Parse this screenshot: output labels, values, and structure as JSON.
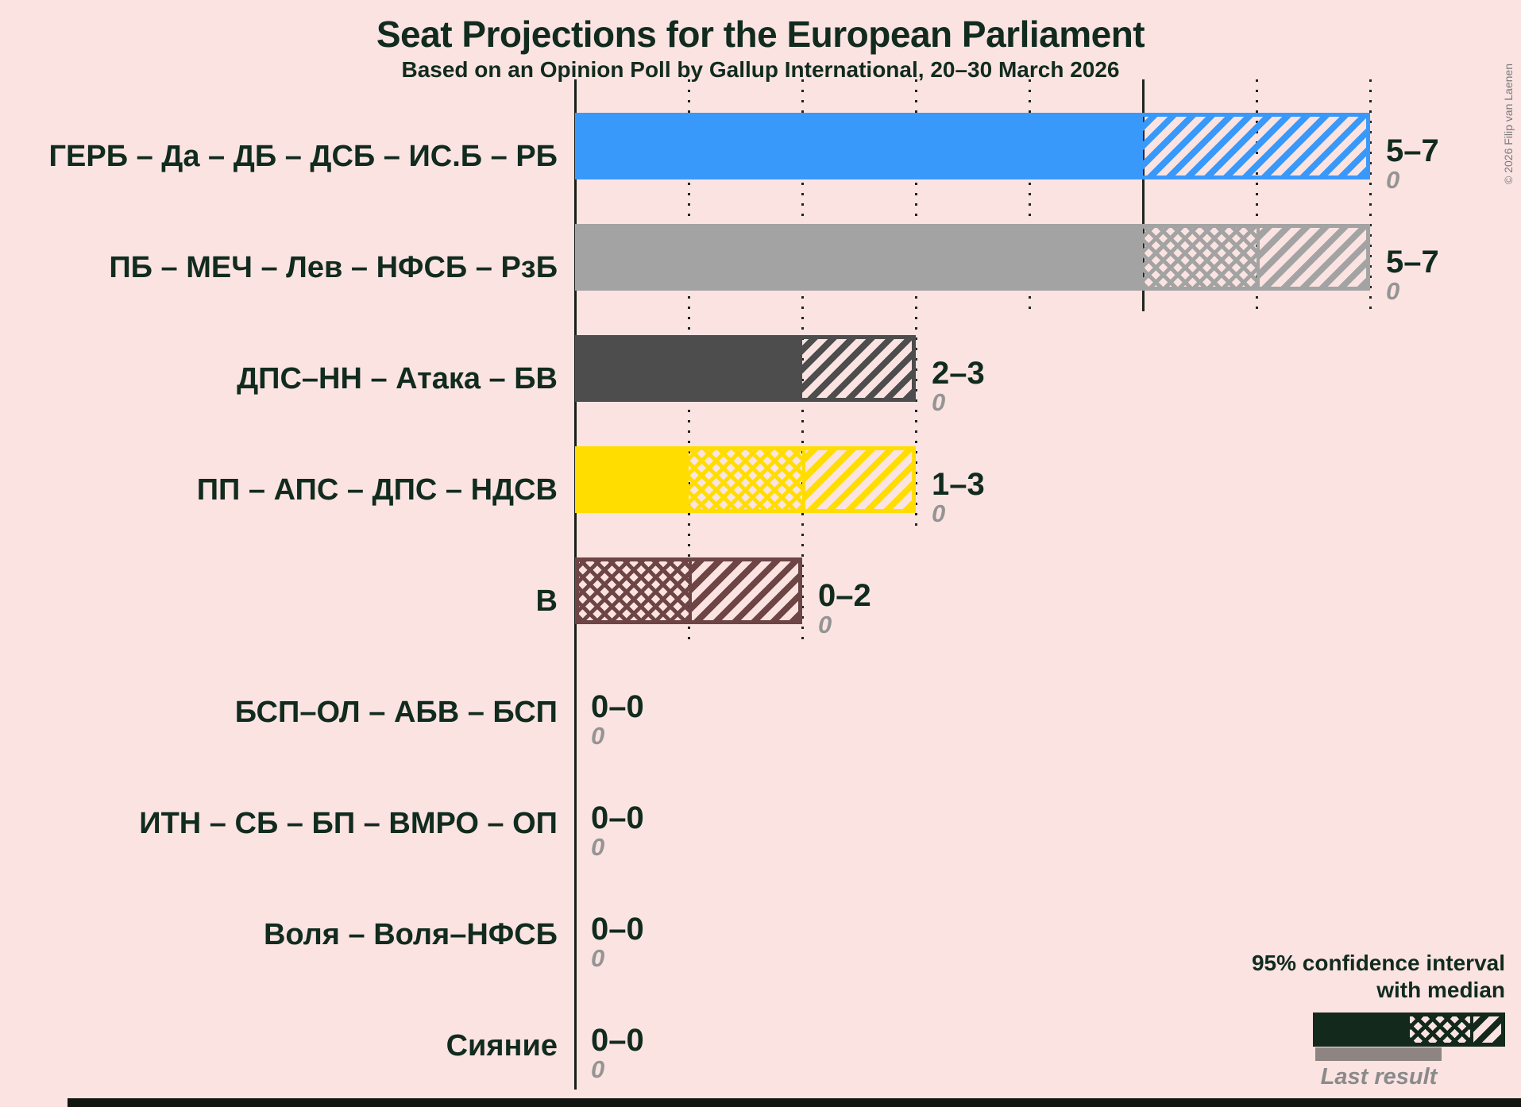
{
  "title": "Seat Projections for the European Parliament",
  "subtitle": "Based on an Opinion Poll by Gallup International, 20–30 March 2026",
  "copyright": "© 2026 Filip van Laenen",
  "legend": {
    "ci_label_line1": "95% confidence interval",
    "ci_label_line2": "with median",
    "last_result_label": "Last result"
  },
  "colors": {
    "background": "#FBE3E2",
    "text": "#112B1E",
    "grid": "#1C261F",
    "last_result_text": "#949494",
    "legend_sample": "#13291C",
    "legend_last_result_bar": "#8E8582",
    "bottom_bar": "#111611"
  },
  "chart_data": {
    "type": "bar",
    "orientation": "horizontal",
    "unit": "seats",
    "x_axis": {
      "min": 0,
      "max": 7,
      "gridline_interval": 1,
      "solid_gridline_at": 5,
      "gridline_style": "dotted"
    },
    "bar_semantics": "solid = 0 to CI low, crosshatch = CI low to median, diagonal hatch = median to CI high; gray underbar = last result",
    "parties": [
      {
        "label": "ГЕРБ – Да – ДБ – ДСБ – ИС.Б – РБ",
        "ci_low": 5,
        "median": 5,
        "ci_high": 7,
        "last_result": 0,
        "value_label": "5–7",
        "last_result_label": "0",
        "color": "#3999FB"
      },
      {
        "label": "ПБ – МЕЧ – Лев – НФСБ – РзБ",
        "ci_low": 5,
        "median": 6,
        "ci_high": 7,
        "last_result": 0,
        "value_label": "5–7",
        "last_result_label": "0",
        "color": "#A3A3A3"
      },
      {
        "label": "ДПС–НН – Атака – БВ",
        "ci_low": 2,
        "median": 2,
        "ci_high": 3,
        "last_result": 0,
        "value_label": "2–3",
        "last_result_label": "0",
        "color": "#4D4D4D"
      },
      {
        "label": "ПП – АПС – ДПС – НДСВ",
        "ci_low": 1,
        "median": 2,
        "ci_high": 3,
        "last_result": 0,
        "value_label": "1–3",
        "last_result_label": "0",
        "color": "#FFDD00"
      },
      {
        "label": "В",
        "ci_low": 0,
        "median": 1,
        "ci_high": 2,
        "last_result": 0,
        "value_label": "0–2",
        "last_result_label": "0",
        "color": "#6E4545"
      },
      {
        "label": "БСП–ОЛ – АБВ – БСП",
        "ci_low": 0,
        "median": 0,
        "ci_high": 0,
        "last_result": 0,
        "value_label": "0–0",
        "last_result_label": "0",
        "color": null
      },
      {
        "label": "ИТН – СБ – БП – ВМРО – ОП",
        "ci_low": 0,
        "median": 0,
        "ci_high": 0,
        "last_result": 0,
        "value_label": "0–0",
        "last_result_label": "0",
        "color": null
      },
      {
        "label": "Воля – Воля–НФСБ",
        "ci_low": 0,
        "median": 0,
        "ci_high": 0,
        "last_result": 0,
        "value_label": "0–0",
        "last_result_label": "0",
        "color": null
      },
      {
        "label": "Сияние",
        "ci_low": 0,
        "median": 0,
        "ci_high": 0,
        "last_result": 0,
        "value_label": "0–0",
        "last_result_label": "0",
        "color": null
      }
    ]
  }
}
